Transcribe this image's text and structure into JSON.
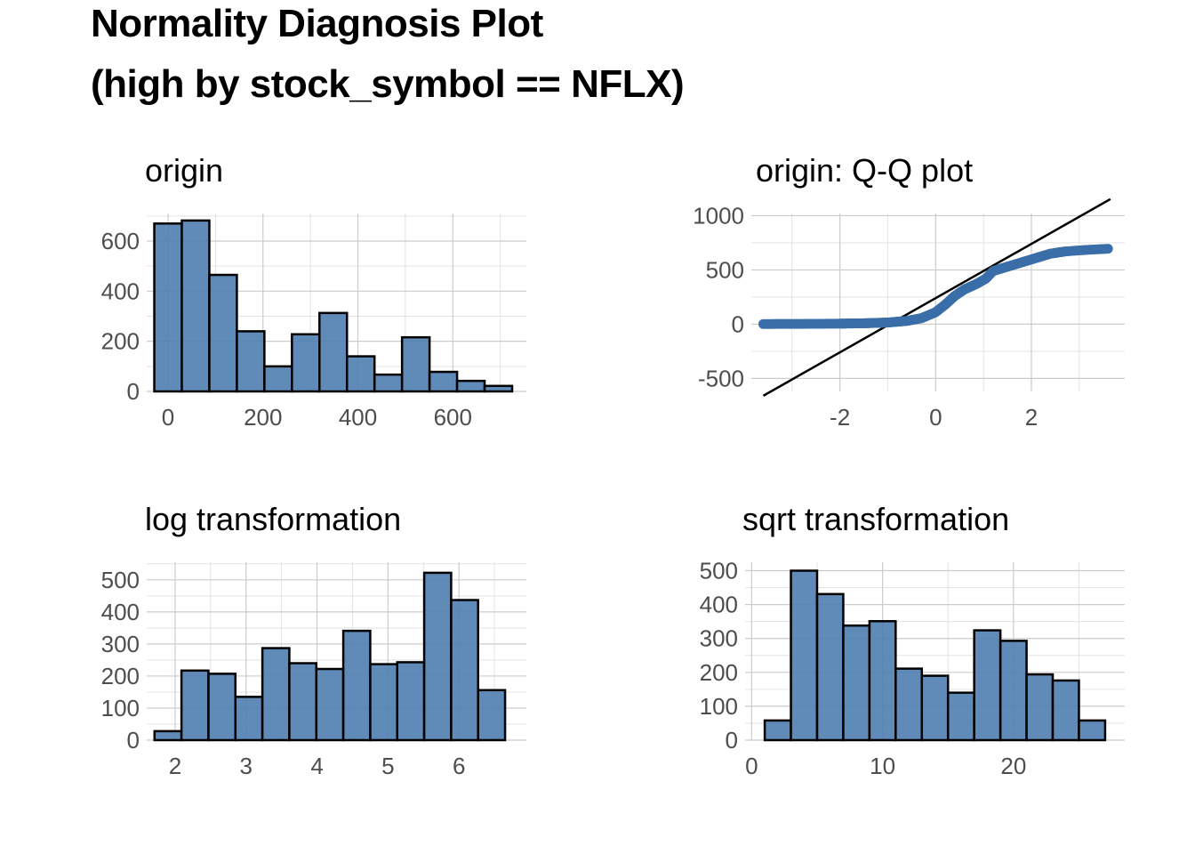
{
  "title_line1": "Normality Diagnosis Plot",
  "title_line2": "(high by stock_symbol == NFLX)",
  "colors": {
    "bar_fill": "#4f7db0",
    "point": "#3a6ea8",
    "line": "#000000",
    "grid": "#cccccc"
  },
  "chart_data": [
    {
      "type": "bar",
      "title": "origin",
      "xlim": [
        -45,
        755
      ],
      "ylim": [
        0,
        710
      ],
      "xticks": [
        0,
        200,
        400,
        600
      ],
      "yticks": [
        0,
        200,
        400,
        600
      ],
      "bins": [
        {
          "x0": -29,
          "x1": 29,
          "y": 670
        },
        {
          "x0": 29,
          "x1": 87,
          "y": 682
        },
        {
          "x0": 87,
          "x1": 145,
          "y": 465
        },
        {
          "x0": 145,
          "x1": 203,
          "y": 240
        },
        {
          "x0": 203,
          "x1": 261,
          "y": 100
        },
        {
          "x0": 261,
          "x1": 319,
          "y": 228
        },
        {
          "x0": 319,
          "x1": 377,
          "y": 313
        },
        {
          "x0": 377,
          "x1": 435,
          "y": 140
        },
        {
          "x0": 435,
          "x1": 493,
          "y": 67
        },
        {
          "x0": 493,
          "x1": 551,
          "y": 216
        },
        {
          "x0": 551,
          "x1": 609,
          "y": 78
        },
        {
          "x0": 609,
          "x1": 667,
          "y": 42
        },
        {
          "x0": 667,
          "x1": 725,
          "y": 22
        }
      ]
    },
    {
      "type": "scatter",
      "title": "origin: Q-Q plot",
      "xlim": [
        -3.85,
        3.95
      ],
      "ylim": [
        -620,
        1020
      ],
      "xticks": [
        -2,
        0,
        2
      ],
      "yticks": [
        -500,
        0,
        500,
        1000
      ],
      "line": {
        "slope": 250,
        "intercept": 240
      },
      "quantile_curve": [
        [
          -3.6,
          1
        ],
        [
          -3.3,
          2
        ],
        [
          -2.5,
          3
        ],
        [
          -2.0,
          5
        ],
        [
          -1.5,
          8
        ],
        [
          -1.0,
          15
        ],
        [
          -0.6,
          30
        ],
        [
          -0.3,
          55
        ],
        [
          0.0,
          110
        ],
        [
          0.2,
          180
        ],
        [
          0.4,
          260
        ],
        [
          0.6,
          320
        ],
        [
          0.85,
          370
        ],
        [
          1.05,
          420
        ],
        [
          1.2,
          490
        ],
        [
          1.5,
          530
        ],
        [
          1.8,
          570
        ],
        [
          2.1,
          610
        ],
        [
          2.4,
          650
        ],
        [
          2.7,
          670
        ],
        [
          3.0,
          680
        ],
        [
          3.3,
          688
        ],
        [
          3.6,
          695
        ]
      ]
    },
    {
      "type": "bar",
      "title": "log transformation",
      "xlim": [
        1.6,
        6.95
      ],
      "ylim": [
        0,
        555
      ],
      "xticks": [
        2,
        3,
        4,
        5,
        6
      ],
      "yticks": [
        0,
        100,
        200,
        300,
        400,
        500
      ],
      "bins": [
        {
          "x0": 1.71,
          "x1": 2.09,
          "y": 28
        },
        {
          "x0": 2.09,
          "x1": 2.47,
          "y": 217
        },
        {
          "x0": 2.47,
          "x1": 2.85,
          "y": 207
        },
        {
          "x0": 2.85,
          "x1": 3.23,
          "y": 135
        },
        {
          "x0": 3.23,
          "x1": 3.61,
          "y": 287
        },
        {
          "x0": 3.61,
          "x1": 3.99,
          "y": 240
        },
        {
          "x0": 3.99,
          "x1": 4.37,
          "y": 222
        },
        {
          "x0": 4.37,
          "x1": 4.75,
          "y": 341
        },
        {
          "x0": 4.75,
          "x1": 5.13,
          "y": 237
        },
        {
          "x0": 5.13,
          "x1": 5.51,
          "y": 243
        },
        {
          "x0": 5.51,
          "x1": 5.89,
          "y": 522
        },
        {
          "x0": 5.89,
          "x1": 6.27,
          "y": 437
        },
        {
          "x0": 6.27,
          "x1": 6.65,
          "y": 156
        }
      ]
    },
    {
      "type": "bar",
      "title": "sqrt transformation",
      "xlim": [
        -0.5,
        28.5
      ],
      "ylim": [
        0,
        525
      ],
      "xticks": [
        0,
        10,
        20
      ],
      "yticks": [
        0,
        100,
        200,
        300,
        400,
        500
      ],
      "bins": [
        {
          "x0": 1.0,
          "x1": 3.0,
          "y": 58
        },
        {
          "x0": 3.0,
          "x1": 5.0,
          "y": 500
        },
        {
          "x0": 5.0,
          "x1": 7.0,
          "y": 431
        },
        {
          "x0": 7.0,
          "x1": 9.0,
          "y": 338
        },
        {
          "x0": 9.0,
          "x1": 11.0,
          "y": 351
        },
        {
          "x0": 11.0,
          "x1": 13.0,
          "y": 211
        },
        {
          "x0": 13.0,
          "x1": 15.0,
          "y": 190
        },
        {
          "x0": 15.0,
          "x1": 17.0,
          "y": 140
        },
        {
          "x0": 17.0,
          "x1": 19.0,
          "y": 324
        },
        {
          "x0": 19.0,
          "x1": 21.0,
          "y": 293
        },
        {
          "x0": 21.0,
          "x1": 23.0,
          "y": 194
        },
        {
          "x0": 23.0,
          "x1": 25.0,
          "y": 176
        },
        {
          "x0": 25.0,
          "x1": 27.0,
          "y": 58
        }
      ]
    }
  ]
}
